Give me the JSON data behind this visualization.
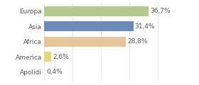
{
  "categories": [
    "Europa",
    "Asia",
    "Africa",
    "America",
    "Apolidi"
  ],
  "values": [
    36.7,
    31.4,
    28.8,
    2.6,
    0.4
  ],
  "labels": [
    "36,7%",
    "31,4%",
    "28,8%",
    "2,6%",
    "0,4%"
  ],
  "bar_colors": [
    "#b5c98e",
    "#6b8cba",
    "#e8c49a",
    "#e8d87a",
    "#e8e8e8"
  ],
  "background_color": "#ffffff",
  "text_color": "#555555",
  "label_fontsize": 6.5,
  "tick_fontsize": 6.5,
  "xlim": [
    0,
    46
  ]
}
